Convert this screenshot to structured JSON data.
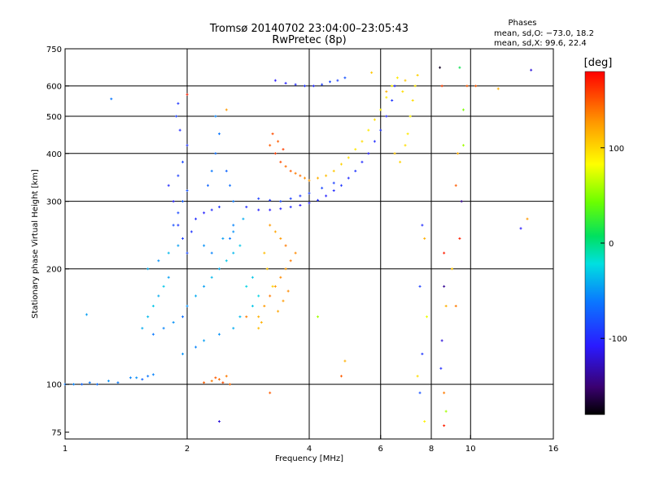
{
  "chart_data": {
    "type": "scatter",
    "title": "Tromsø 20140702 23:04:00–23:05:43",
    "subtitle": "RwPretec (8p)",
    "xlabel": "Frequency [MHz]",
    "ylabel": "Stationary phase Virtual Height [km]",
    "x_scale": "log2",
    "y_scale": "log",
    "xlim": [
      1,
      16
    ],
    "ylim": [
      72,
      750
    ],
    "x_ticks": [
      1,
      2,
      4,
      6,
      8,
      10,
      16
    ],
    "y_ticks": [
      75,
      100,
      200,
      300,
      400,
      500,
      600,
      750
    ],
    "x_gridlines": [
      2,
      4,
      6,
      8,
      10
    ],
    "y_gridlines": [
      100,
      200,
      300,
      400,
      500,
      600
    ],
    "stats": {
      "heading": "Phases",
      "line_o": "mean, sd,O: −73.0, 18.2",
      "line_x": "mean, sd,X:  99.6, 22.4"
    },
    "colorbar": {
      "unit": "[deg]",
      "range": [
        -180,
        180
      ],
      "ticks": [
        100,
        0,
        -100
      ],
      "colormap": "rainbow"
    },
    "series": [
      {
        "points": [
          [
            1.0,
            100,
            -60
          ],
          [
            1.05,
            100,
            -55
          ],
          [
            1.1,
            100,
            -70
          ],
          [
            1.15,
            101,
            -60
          ],
          [
            1.2,
            100,
            -65
          ],
          [
            1.28,
            102,
            -50
          ],
          [
            1.35,
            101,
            -60
          ],
          [
            1.45,
            104,
            -55
          ],
          [
            1.5,
            104,
            -50
          ],
          [
            1.55,
            103,
            -70
          ],
          [
            1.6,
            105,
            -60
          ],
          [
            1.65,
            106,
            -55
          ],
          [
            1.13,
            152,
            -45
          ],
          [
            1.3,
            555,
            -60
          ],
          [
            1.55,
            140,
            -40
          ],
          [
            1.6,
            150,
            -35
          ],
          [
            1.65,
            160,
            -30
          ],
          [
            1.7,
            170,
            -40
          ],
          [
            1.75,
            180,
            -30
          ],
          [
            1.8,
            190,
            -45
          ],
          [
            1.6,
            200,
            -40
          ],
          [
            1.7,
            210,
            -50
          ],
          [
            1.8,
            220,
            -35
          ],
          [
            1.9,
            230,
            -45
          ],
          [
            1.65,
            135,
            -60
          ],
          [
            1.75,
            140,
            -55
          ],
          [
            1.85,
            145,
            -50
          ],
          [
            1.95,
            150,
            -65
          ],
          [
            2.0,
            160,
            -50
          ],
          [
            2.1,
            170,
            -40
          ],
          [
            2.2,
            180,
            -45
          ],
          [
            2.3,
            190,
            -35
          ],
          [
            2.4,
            200,
            -40
          ],
          [
            2.5,
            210,
            -30
          ],
          [
            2.6,
            220,
            -35
          ],
          [
            2.7,
            230,
            -30
          ],
          [
            2.8,
            180,
            -25
          ],
          [
            2.9,
            190,
            -30
          ],
          [
            1.85,
            260,
            -80
          ],
          [
            1.9,
            280,
            -85
          ],
          [
            1.95,
            300,
            -75
          ],
          [
            2.0,
            320,
            -80
          ],
          [
            1.9,
            350,
            -90
          ],
          [
            1.95,
            380,
            -85
          ],
          [
            2.0,
            420,
            -95
          ],
          [
            1.92,
            460,
            -100
          ],
          [
            1.88,
            500,
            -90
          ],
          [
            1.9,
            540,
            -95
          ],
          [
            2.05,
            250,
            -95
          ],
          [
            2.1,
            270,
            -100
          ],
          [
            2.2,
            280,
            -105
          ],
          [
            2.3,
            285,
            -100
          ],
          [
            2.4,
            290,
            -95
          ],
          [
            2.25,
            330,
            -70
          ],
          [
            2.3,
            360,
            -60
          ],
          [
            2.35,
            400,
            -65
          ],
          [
            2.4,
            450,
            -60
          ],
          [
            2.35,
            500,
            -55
          ],
          [
            2.5,
            360,
            -70
          ],
          [
            2.55,
            330,
            -65
          ],
          [
            2.6,
            300,
            -60
          ],
          [
            2.6,
            260,
            -55
          ],
          [
            2.55,
            240,
            -60
          ],
          [
            2.2,
            230,
            -50
          ],
          [
            2.3,
            220,
            -55
          ],
          [
            2.45,
            240,
            -45
          ],
          [
            2.6,
            250,
            -50
          ],
          [
            2.75,
            270,
            -40
          ],
          [
            1.8,
            330,
            -100
          ],
          [
            1.85,
            300,
            -105
          ],
          [
            1.9,
            260,
            -95
          ],
          [
            1.95,
            240,
            -90
          ],
          [
            2.0,
            220,
            -85
          ],
          [
            2.3,
            102,
            140
          ],
          [
            2.35,
            104,
            150
          ],
          [
            2.4,
            103,
            145
          ],
          [
            2.45,
            101,
            155
          ],
          [
            2.5,
            105,
            140
          ],
          [
            2.2,
            101,
            150
          ],
          [
            2.55,
            100,
            145
          ],
          [
            2.8,
            290,
            -100
          ],
          [
            3.0,
            285,
            -105
          ],
          [
            3.2,
            285,
            -110
          ],
          [
            3.4,
            287,
            -105
          ],
          [
            3.6,
            290,
            -100
          ],
          [
            3.8,
            293,
            -110
          ],
          [
            4.0,
            297,
            -105
          ],
          [
            4.2,
            302,
            -100
          ],
          [
            4.4,
            310,
            -105
          ],
          [
            4.6,
            320,
            -100
          ],
          [
            4.8,
            330,
            -95
          ],
          [
            5.0,
            345,
            -100
          ],
          [
            5.2,
            360,
            -95
          ],
          [
            5.4,
            380,
            -100
          ],
          [
            5.6,
            400,
            -105
          ],
          [
            5.8,
            430,
            -100
          ],
          [
            6.0,
            460,
            -95
          ],
          [
            6.2,
            500,
            -100
          ],
          [
            6.4,
            550,
            -95
          ],
          [
            6.5,
            600,
            -100
          ],
          [
            3.0,
            305,
            -90
          ],
          [
            3.2,
            302,
            -95
          ],
          [
            3.4,
            300,
            -85
          ],
          [
            3.6,
            305,
            -90
          ],
          [
            3.8,
            310,
            -95
          ],
          [
            4.0,
            315,
            -90
          ],
          [
            4.3,
            325,
            -85
          ],
          [
            4.6,
            335,
            -90
          ],
          [
            3.3,
            620,
            -110
          ],
          [
            3.5,
            610,
            -105
          ],
          [
            3.7,
            605,
            -100
          ],
          [
            3.9,
            600,
            -95
          ],
          [
            4.1,
            600,
            -100
          ],
          [
            4.3,
            605,
            -90
          ],
          [
            4.5,
            615,
            -85
          ],
          [
            4.7,
            620,
            -90
          ],
          [
            4.9,
            630,
            -80
          ],
          [
            3.2,
            420,
            150
          ],
          [
            3.3,
            400,
            160
          ],
          [
            3.4,
            380,
            155
          ],
          [
            3.5,
            370,
            145
          ],
          [
            3.6,
            360,
            150
          ],
          [
            3.7,
            355,
            140
          ],
          [
            3.8,
            350,
            145
          ],
          [
            3.9,
            345,
            135
          ],
          [
            4.0,
            340,
            130
          ],
          [
            4.2,
            345,
            120
          ],
          [
            4.4,
            350,
            115
          ],
          [
            4.6,
            360,
            110
          ],
          [
            4.8,
            375,
            105
          ],
          [
            5.0,
            390,
            100
          ],
          [
            5.2,
            410,
            95
          ],
          [
            5.4,
            430,
            100
          ],
          [
            5.6,
            460,
            95
          ],
          [
            5.8,
            490,
            100
          ],
          [
            6.0,
            520,
            90
          ],
          [
            6.2,
            560,
            95
          ],
          [
            6.4,
            600,
            90
          ],
          [
            6.6,
            630,
            95
          ],
          [
            3.25,
            450,
            155
          ],
          [
            3.35,
            430,
            150
          ],
          [
            3.45,
            410,
            160
          ],
          [
            3.0,
            150,
            120
          ],
          [
            3.1,
            160,
            130
          ],
          [
            3.2,
            170,
            140
          ],
          [
            3.3,
            180,
            130
          ],
          [
            3.4,
            190,
            135
          ],
          [
            3.5,
            200,
            130
          ],
          [
            3.6,
            210,
            140
          ],
          [
            3.7,
            220,
            135
          ],
          [
            3.5,
            230,
            140
          ],
          [
            3.4,
            240,
            130
          ],
          [
            3.3,
            250,
            125
          ],
          [
            3.2,
            260,
            130
          ],
          [
            3.1,
            220,
            115
          ],
          [
            3.15,
            200,
            110
          ],
          [
            3.25,
            180,
            105
          ],
          [
            3.0,
            140,
            115
          ],
          [
            3.05,
            145,
            120
          ],
          [
            3.35,
            155,
            125
          ],
          [
            3.45,
            165,
            130
          ],
          [
            3.55,
            175,
            135
          ],
          [
            6.5,
            400,
            110
          ],
          [
            6.7,
            380,
            105
          ],
          [
            6.9,
            420,
            100
          ],
          [
            7.0,
            450,
            95
          ],
          [
            7.1,
            500,
            90
          ],
          [
            7.2,
            550,
            100
          ],
          [
            7.3,
            600,
            95
          ],
          [
            6.8,
            580,
            100
          ],
          [
            6.9,
            620,
            110
          ],
          [
            7.4,
            640,
            105
          ],
          [
            7.6,
            260,
            -100
          ],
          [
            7.7,
            240,
            120
          ],
          [
            7.5,
            180,
            -90
          ],
          [
            7.8,
            150,
            80
          ],
          [
            7.6,
            120,
            -95
          ],
          [
            7.4,
            105,
            100
          ],
          [
            7.5,
            95,
            -80
          ],
          [
            7.7,
            80,
            90
          ],
          [
            8.4,
            670,
            -170
          ],
          [
            8.5,
            600,
            160
          ],
          [
            8.6,
            220,
            170
          ],
          [
            8.6,
            180,
            -140
          ],
          [
            8.7,
            160,
            120
          ],
          [
            8.5,
            130,
            -120
          ],
          [
            8.6,
            95,
            140
          ],
          [
            8.7,
            85,
            60
          ],
          [
            8.6,
            78,
            170
          ],
          [
            8.45,
            110,
            -100
          ],
          [
            9.0,
            200,
            110
          ],
          [
            9.2,
            330,
            150
          ],
          [
            9.3,
            400,
            120
          ],
          [
            9.6,
            420,
            60
          ],
          [
            9.5,
            300,
            -140
          ],
          [
            9.4,
            240,
            170
          ],
          [
            9.2,
            160,
            140
          ],
          [
            9.6,
            520,
            50
          ],
          [
            9.8,
            600,
            150
          ],
          [
            9.4,
            670,
            10
          ],
          [
            10.3,
            600,
            150
          ],
          [
            11.7,
            590,
            120
          ],
          [
            13.3,
            255,
            -110
          ],
          [
            13.8,
            270,
            130
          ],
          [
            14.1,
            660,
            -120
          ],
          [
            2.0,
            570,
            170
          ],
          [
            2.4,
            80,
            -120
          ],
          [
            2.5,
            520,
            130
          ],
          [
            5.7,
            650,
            110
          ],
          [
            6.2,
            580,
            120
          ],
          [
            4.8,
            105,
            150
          ],
          [
            4.9,
            115,
            120
          ],
          [
            4.2,
            150,
            60
          ],
          [
            3.2,
            95,
            150
          ],
          [
            2.8,
            150,
            140
          ],
          [
            1.95,
            120,
            -50
          ],
          [
            2.1,
            125,
            -55
          ],
          [
            2.2,
            130,
            -45
          ],
          [
            2.4,
            135,
            -50
          ],
          [
            2.6,
            140,
            -40
          ],
          [
            2.7,
            150,
            -35
          ],
          [
            2.9,
            160,
            -30
          ],
          [
            3.0,
            170,
            -25
          ]
        ]
      }
    ]
  }
}
